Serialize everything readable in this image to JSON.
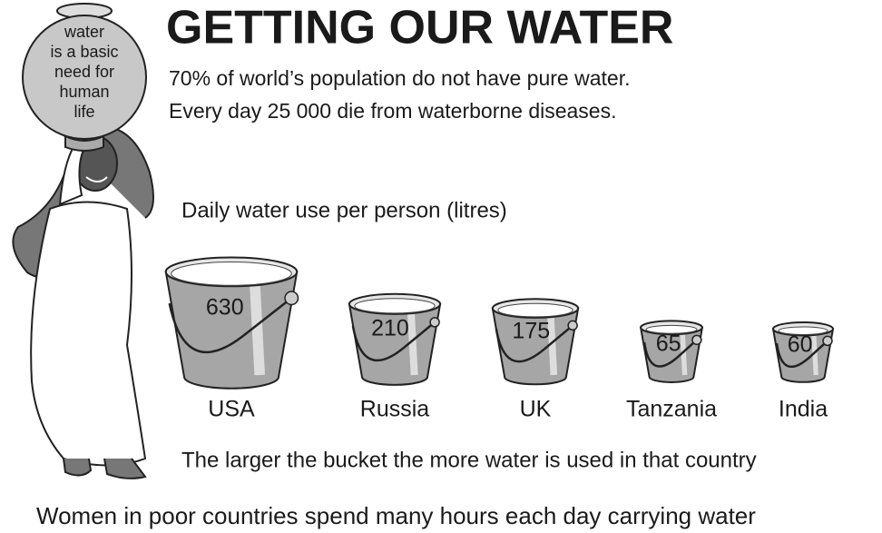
{
  "chart_data": {
    "type": "bucket",
    "title": "GETTING OUR WATER",
    "subtitle": [
      "70% of world’s population do not have pure water.",
      "Every day 25 000 die from waterborne diseases."
    ],
    "jug_label": [
      "water",
      "is a basic",
      "need for",
      "human",
      "life"
    ],
    "chart_title": "Daily water use per person (litres)",
    "categories": [
      "USA",
      "Russia",
      "UK",
      "Tanzania",
      "India"
    ],
    "values": [
      630,
      210,
      175,
      65,
      60
    ],
    "color": "#a6a6a6",
    "note": "The larger the bucket the more water is used in that country",
    "caption": "Women in poor countries spend many hours each day carrying water"
  }
}
